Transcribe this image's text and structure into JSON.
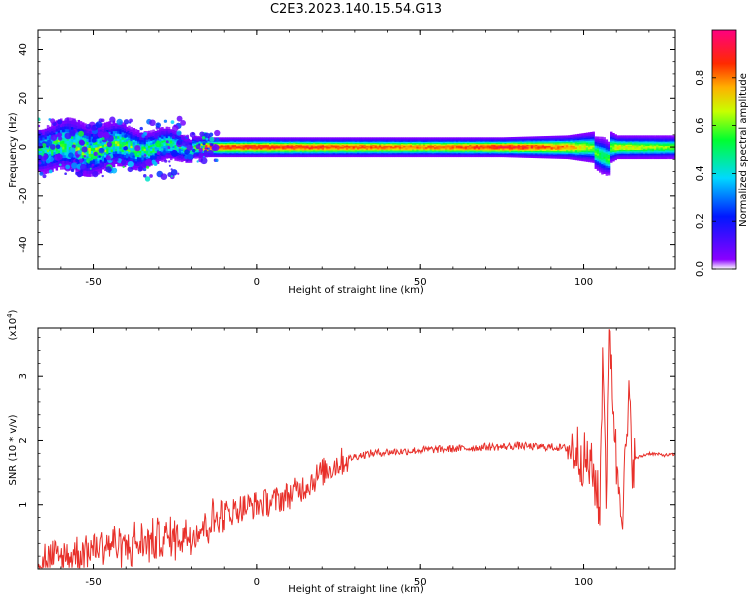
{
  "figure": {
    "title": "C2E3.2023.140.15.54.G13"
  },
  "chart_data": [
    {
      "type": "heatmap",
      "title": "C2E3.2023.140.15.54.G13",
      "xlabel": "Height of straight line (km)",
      "ylabel": "Frequency (Hz)",
      "xlim": [
        -67,
        128
      ],
      "ylim": [
        -50,
        48
      ],
      "xticks": [
        -50,
        0,
        50,
        100
      ],
      "yticks": [
        -40,
        -20,
        0,
        20,
        40
      ],
      "colorbar": {
        "label": "Normalized spectral amplitude",
        "range": [
          0,
          1
        ],
        "ticks": [
          "0.0",
          "0.2",
          "0.4",
          "0.6",
          "0.8"
        ],
        "colormap": "rainbow (violet → blue → cyan → green → yellow → red → magenta)"
      },
      "ridge": {
        "description": "Spectral energy concentrated near 0 Hz; scattered broadband content (approx. -12 to +13 Hz) below ~-20 km, narrowing to about ±3 Hz above ~0 km, with a disturbance near 105 km",
        "x": [
          -66,
          -55,
          -45,
          -35,
          -25,
          -20,
          -15,
          0,
          25,
          50,
          75,
          95,
          103,
          106,
          110,
          128
        ],
        "halfwidth_hz": [
          6,
          7,
          6,
          5,
          4,
          3,
          2.5,
          2.5,
          2.5,
          2.5,
          2.5,
          3,
          4,
          5,
          3,
          3
        ],
        "peak_amplitude": [
          0.5,
          0.55,
          0.55,
          0.5,
          0.45,
          0.5,
          0.85,
          0.9,
          0.85,
          0.8,
          0.9,
          0.8,
          0.6,
          0.5,
          0.7,
          0.6
        ]
      }
    },
    {
      "type": "line",
      "xlabel": "Height of straight line (km)",
      "ylabel": "SNR (10 * v/v)",
      "y_multiplier_label": "(x10",
      "y_multiplier_exp": "4",
      "y_multiplier_close": ")",
      "xlim": [
        -67,
        128
      ],
      "ylim": [
        0,
        3.75
      ],
      "xticks": [
        -50,
        0,
        50,
        100
      ],
      "yticks": [
        1,
        2,
        3
      ],
      "color": "#e8302a",
      "series": [
        {
          "x": [
            -67,
            -65,
            -60,
            -55,
            -50,
            -45,
            -40,
            -35,
            -30,
            -25,
            -20,
            -15,
            -10,
            -5,
            0,
            5,
            10,
            15,
            20,
            25,
            30,
            35,
            40,
            45,
            50,
            55,
            60,
            65,
            70,
            75,
            80,
            85,
            90,
            95,
            98,
            100,
            102,
            104,
            105,
            106,
            107,
            108,
            110,
            112,
            114,
            115,
            120,
            125,
            128
          ],
          "y": [
            0.15,
            0.1,
            0.15,
            0.25,
            0.35,
            0.4,
            0.35,
            0.4,
            0.45,
            0.5,
            0.55,
            0.7,
            0.85,
            0.95,
            1.0,
            1.05,
            1.15,
            1.3,
            1.5,
            1.65,
            1.75,
            1.8,
            1.82,
            1.83,
            1.85,
            1.86,
            1.87,
            1.88,
            1.9,
            1.9,
            1.92,
            1.9,
            1.9,
            1.88,
            1.85,
            1.7,
            1.6,
            1.3,
            0.8,
            3.6,
            1.2,
            3.7,
            1.6,
            1.0,
            2.6,
            1.7,
            1.8,
            1.77,
            1.78
          ]
        }
      ]
    }
  ]
}
